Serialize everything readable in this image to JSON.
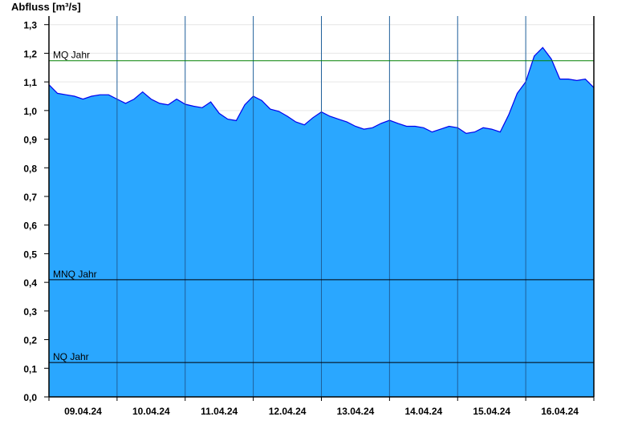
{
  "chart_data": {
    "type": "area",
    "ylabel": "Abfluss [m³/s]",
    "ylim": [
      0,
      1.33
    ],
    "yticks": [
      "0,0",
      "0,1",
      "0,2",
      "0,3",
      "0,4",
      "0,5",
      "0,6",
      "0,7",
      "0,8",
      "0,9",
      "1,0",
      "1,1",
      "1,2",
      "1,3"
    ],
    "xlim": [
      "2024-04-09T00:00",
      "2024-04-17T00:00"
    ],
    "xtick_labels": [
      "09.04.24",
      "10.04.24",
      "11.04.24",
      "12.04.24",
      "13.04.24",
      "14.04.24",
      "15.04.24",
      "16.04.24"
    ],
    "grid": true,
    "fill_color": "#2aa7ff",
    "line_color": "#0000ee",
    "sample_interval_hours": 3,
    "values": [
      1.09,
      1.06,
      1.055,
      1.05,
      1.04,
      1.05,
      1.055,
      1.055,
      1.04,
      1.025,
      1.04,
      1.065,
      1.04,
      1.025,
      1.02,
      1.04,
      1.022,
      1.015,
      1.01,
      1.03,
      0.99,
      0.97,
      0.965,
      1.02,
      1.05,
      1.035,
      1.005,
      0.997,
      0.98,
      0.96,
      0.95,
      0.975,
      0.995,
      0.98,
      0.97,
      0.96,
      0.945,
      0.935,
      0.94,
      0.955,
      0.966,
      0.955,
      0.945,
      0.945,
      0.94,
      0.925,
      0.935,
      0.945,
      0.94,
      0.92,
      0.925,
      0.94,
      0.935,
      0.925,
      0.985,
      1.06,
      1.1,
      1.19,
      1.22,
      1.18,
      1.11,
      1.11,
      1.105,
      1.11,
      1.08
    ],
    "reference_lines": [
      {
        "label": "MQ Jahr",
        "value": 1.174,
        "color": "#008000"
      },
      {
        "label": "MNQ Jahr",
        "value": 0.409,
        "color": "#000000"
      },
      {
        "label": "NQ Jahr",
        "value": 0.12,
        "color": "#000000"
      }
    ]
  }
}
